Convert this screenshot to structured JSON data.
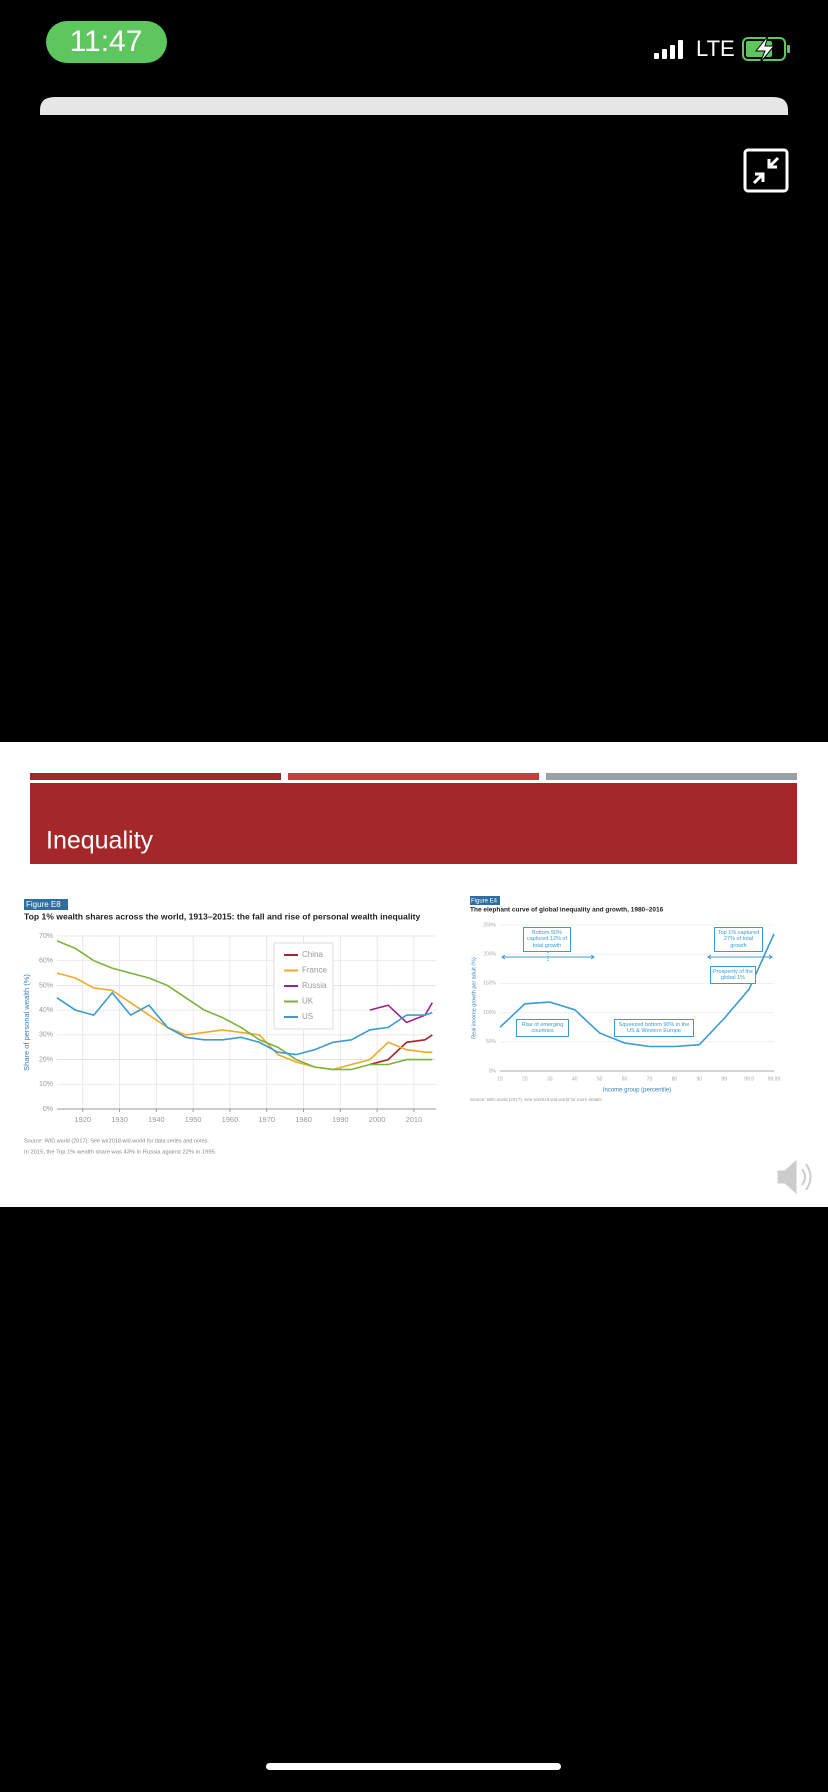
{
  "status_bar": {
    "time": "11:47",
    "network": "LTE"
  },
  "slide": {
    "title": "Inequality",
    "figures": [
      {
        "type": "line",
        "label": "Figure E8",
        "title": "Top 1% wealth shares across the world, 1913–2015: the fall and rise of personal wealth inequality",
        "y_label": "Share of personal wealth (%)",
        "x": [
          1913,
          1918,
          1923,
          1928,
          1933,
          1938,
          1943,
          1948,
          1953,
          1958,
          1963,
          1968,
          1973,
          1978,
          1983,
          1988,
          1993,
          1998,
          2003,
          2008,
          2013,
          2015
        ],
        "xlim": [
          1913,
          2016
        ],
        "xticks": [
          1920,
          1930,
          1940,
          1950,
          1960,
          1970,
          1980,
          1990,
          2000,
          2010
        ],
        "ylim": [
          0,
          70
        ],
        "yticks": [
          {
            "value": 0,
            "label": "0%"
          },
          {
            "value": 10,
            "label": "10%"
          },
          {
            "value": 20,
            "label": "20%"
          },
          {
            "value": 30,
            "label": "30%"
          },
          {
            "value": 40,
            "label": "40%"
          },
          {
            "value": 50,
            "label": "50%"
          },
          {
            "value": 60,
            "label": "60%"
          },
          {
            "value": 70,
            "label": "70%"
          }
        ],
        "grid": true,
        "series": [
          {
            "name": "China",
            "color": "#a3262a",
            "values": [
              null,
              null,
              null,
              null,
              null,
              null,
              null,
              null,
              null,
              null,
              null,
              null,
              null,
              null,
              null,
              null,
              null,
              18,
              20,
              27,
              28,
              30
            ]
          },
          {
            "name": "France",
            "color": "#f0a92c",
            "values": [
              55,
              53,
              49,
              48,
              43,
              38,
              33,
              30,
              31,
              32,
              31,
              30,
              22,
              19,
              17,
              16,
              18,
              20,
              27,
              24,
              23,
              23
            ]
          },
          {
            "name": "Russia",
            "color": "#9b2586",
            "values": [
              null,
              null,
              null,
              null,
              null,
              null,
              null,
              null,
              null,
              null,
              null,
              null,
              null,
              null,
              null,
              null,
              null,
              40,
              42,
              35,
              38,
              43
            ]
          },
          {
            "name": "UK",
            "color": "#7ab33a",
            "values": [
              68,
              65,
              60,
              57,
              55,
              53,
              50,
              45,
              40,
              37,
              33,
              28,
              25,
              20,
              17,
              16,
              16,
              18,
              18,
              20,
              20,
              20
            ]
          },
          {
            "name": "US",
            "color": "#3a9bd5",
            "values": [
              45,
              40,
              38,
              47,
              38,
              42,
              33,
              29,
              28,
              28,
              29,
              27,
              23,
              22,
              24,
              27,
              28,
              32,
              33,
              38,
              38,
              39
            ]
          }
        ],
        "source": "Source: WID.world (2017). See wir2018.wid.world for data series and notes.",
        "note": "In 2015, the Top 1% wealth share was 43% in Russia against 22% in 1995."
      },
      {
        "type": "line",
        "label": "Figure E4",
        "title": "The elephant curve of global inequality and growth, 1980–2016",
        "y_label": "Real income growth per adult (%)",
        "x_label": "Income group (percentile)",
        "categories": [
          "10",
          "20",
          "30",
          "40",
          "50",
          "60",
          "70",
          "80",
          "90",
          "99",
          "99.9",
          "99.99"
        ],
        "values": [
          75,
          115,
          118,
          105,
          65,
          48,
          42,
          42,
          45,
          90,
          140,
          235
        ],
        "color": "#3a9bd5",
        "ylim": [
          0,
          250
        ],
        "yticks": [
          {
            "value": 0,
            "label": "0%"
          },
          {
            "value": 50,
            "label": "50%"
          },
          {
            "value": 100,
            "label": "100%"
          },
          {
            "value": 150,
            "label": "150%"
          },
          {
            "value": 200,
            "label": "200%"
          },
          {
            "value": 250,
            "label": "250%"
          }
        ],
        "annotations": [
          "Bottom 50% captured 12% of total growth",
          "Top 1% captured 27% of total growth",
          "Rise of emerging countries",
          "Squeezed bottom 90% in the US & Western Europe",
          "Prosperity of the global 1%"
        ],
        "source": "Source: WID.world (2017). See wir2018.wid.world for more details."
      }
    ]
  }
}
